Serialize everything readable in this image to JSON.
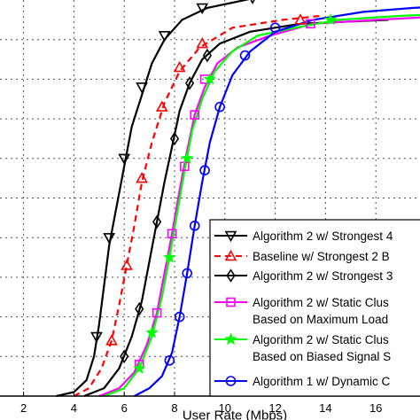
{
  "chart_data": {
    "type": "line",
    "title": "",
    "xlabel": "User Rate (Mbps)",
    "ylabel": "",
    "xlim": [
      0,
      19
    ],
    "ylim": [
      0,
      1
    ],
    "x_ticks": [
      2,
      4,
      6,
      8,
      10,
      12,
      14,
      16
    ],
    "grid": true,
    "legend_position": "bottom-right",
    "series": [
      {
        "name": "Algorithm 2 w/ Strongest 4",
        "color": "#000000",
        "line_style": "solid",
        "marker": "triangle-down",
        "x": [
          3.3,
          4.0,
          4.5,
          4.8,
          5.0,
          5.2,
          5.4,
          5.7,
          6.0,
          6.3,
          6.7,
          7.1,
          7.6,
          8.3,
          9.3,
          10.8,
          11.5
        ],
        "y": [
          0.0,
          0.01,
          0.04,
          0.1,
          0.18,
          0.28,
          0.38,
          0.48,
          0.58,
          0.68,
          0.76,
          0.84,
          0.9,
          0.95,
          0.98,
          1.0,
          1.01
        ],
        "marker_x": [
          4.9,
          5.4,
          6.0,
          6.7,
          7.6,
          9.1,
          11.1
        ],
        "marker_y": [
          0.15,
          0.4,
          0.6,
          0.78,
          0.91,
          0.98,
          1.005
        ]
      },
      {
        "name": "Baseline w/ Strongest 2 B",
        "color": "#ff0000",
        "line_style": "dashed",
        "marker": "triangle-up",
        "x": [
          4.0,
          4.6,
          5.1,
          5.5,
          5.8,
          6.1,
          6.4,
          6.7,
          7.1,
          7.6,
          8.2,
          9.0,
          10.3,
          12.3,
          13.8
        ],
        "y": [
          0.0,
          0.02,
          0.07,
          0.14,
          0.23,
          0.33,
          0.43,
          0.54,
          0.64,
          0.74,
          0.82,
          0.88,
          0.93,
          0.95,
          0.96
        ],
        "marker_x": [
          5.5,
          6.1,
          6.7,
          7.5,
          8.2,
          9.1,
          13.0
        ],
        "marker_y": [
          0.14,
          0.33,
          0.55,
          0.73,
          0.83,
          0.89,
          0.95
        ]
      },
      {
        "name": "Algorithm 2 w/ Strongest 3",
        "color": "#000000",
        "line_style": "solid",
        "marker": "diamond",
        "x": [
          4.4,
          5.2,
          5.8,
          6.3,
          6.7,
          7.0,
          7.3,
          7.6,
          7.9,
          8.2,
          8.6,
          9.1,
          9.8,
          11.0,
          13.0,
          16.5
        ],
        "y": [
          0.0,
          0.02,
          0.07,
          0.15,
          0.24,
          0.34,
          0.44,
          0.54,
          0.63,
          0.72,
          0.79,
          0.85,
          0.89,
          0.92,
          0.94,
          0.95
        ],
        "marker_x": [
          6.0,
          6.6,
          7.3,
          8.0,
          8.6,
          9.3
        ],
        "marker_y": [
          0.1,
          0.22,
          0.44,
          0.65,
          0.79,
          0.86
        ]
      },
      {
        "name": "Algorithm 2 w/ Static Clus",
        "name_line2": "Based on Maximum Load",
        "color": "#ff00ff",
        "line_style": "solid",
        "marker": "square",
        "x": [
          5.0,
          5.8,
          6.4,
          6.9,
          7.3,
          7.6,
          7.9,
          8.2,
          8.5,
          8.8,
          9.2,
          9.7,
          10.5,
          11.8,
          13.5,
          16.0,
          19.0
        ],
        "y": [
          0.0,
          0.02,
          0.06,
          0.13,
          0.21,
          0.31,
          0.41,
          0.52,
          0.62,
          0.71,
          0.78,
          0.84,
          0.88,
          0.91,
          0.94,
          0.95,
          0.96
        ],
        "marker_x": [
          6.6,
          7.3,
          7.9,
          8.4,
          8.8,
          9.2,
          13.4
        ],
        "marker_y": [
          0.08,
          0.21,
          0.41,
          0.58,
          0.71,
          0.8,
          0.94
        ]
      },
      {
        "name": "Algorithm 2 w/ Static Clus",
        "name_line2": "Based on Biased Signal S",
        "color": "#00ff00",
        "line_style": "solid",
        "marker": "star",
        "x": [
          5.2,
          6.0,
          6.6,
          7.1,
          7.5,
          7.8,
          8.1,
          8.4,
          8.7,
          9.1,
          9.6,
          10.3,
          11.3,
          12.8,
          14.5,
          17.0,
          19.0
        ],
        "y": [
          0.0,
          0.02,
          0.07,
          0.15,
          0.25,
          0.35,
          0.46,
          0.57,
          0.67,
          0.75,
          0.82,
          0.87,
          0.91,
          0.93,
          0.95,
          0.96,
          0.965
        ],
        "marker_x": [
          6.6,
          7.1,
          7.8,
          8.5,
          9.4,
          14.2
        ],
        "marker_y": [
          0.07,
          0.16,
          0.35,
          0.6,
          0.8,
          0.95
        ]
      },
      {
        "name": "Algorithm 1 w/ Dynamic C",
        "color": "#0000ff",
        "line_style": "solid",
        "marker": "circle",
        "x": [
          6.4,
          7.0,
          7.5,
          7.9,
          8.2,
          8.5,
          8.8,
          9.1,
          9.4,
          9.8,
          10.3,
          11.0,
          12.0,
          13.5,
          15.5,
          17.5,
          19.0
        ],
        "y": [
          0.0,
          0.02,
          0.05,
          0.11,
          0.2,
          0.31,
          0.43,
          0.54,
          0.64,
          0.73,
          0.81,
          0.87,
          0.92,
          0.95,
          0.97,
          0.98,
          0.985
        ],
        "marker_x": [
          7.8,
          8.2,
          8.5,
          8.8,
          9.2,
          9.8,
          10.8,
          12.0
        ],
        "marker_y": [
          0.09,
          0.2,
          0.31,
          0.43,
          0.57,
          0.73,
          0.86,
          0.93
        ]
      }
    ]
  }
}
